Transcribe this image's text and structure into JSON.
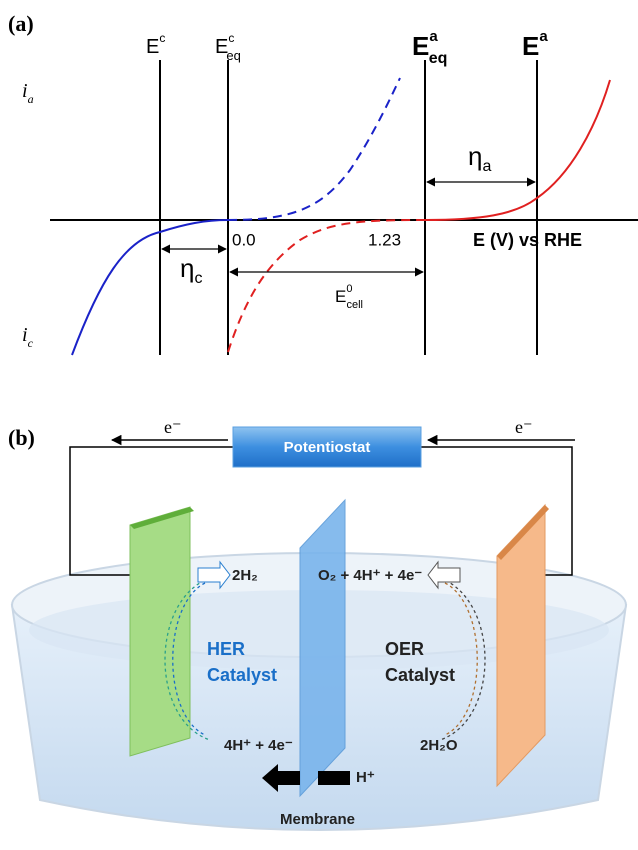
{
  "panel_a": {
    "label": "(a)",
    "potentials": [
      {
        "base": "E",
        "sup": "c"
      },
      {
        "base": "E",
        "sup": "c",
        "sub": "eq"
      },
      {
        "base": "E",
        "sup": "a",
        "sub": "eq"
      },
      {
        "base": "E",
        "sup": "a"
      }
    ],
    "current_labels": [
      {
        "base": "i",
        "sub": "a"
      },
      {
        "base": "i",
        "sub": "c"
      }
    ],
    "overpotentials": [
      {
        "base": "η",
        "sub": "a"
      },
      {
        "base": "η",
        "sub": "c"
      }
    ],
    "axis_ticks": [
      "0.0",
      "1.23"
    ],
    "axis_label": "E (V) vs RHE",
    "cell_potential": {
      "base": "E",
      "sup": "0",
      "sub": "cell"
    }
  },
  "panel_b": {
    "label": "(b)",
    "electron_labels": [
      "e⁻",
      "e⁻"
    ],
    "potentiostat": "Potentiostat",
    "cathode_product": "2H₂",
    "anode_product": "O₂ + 4H⁺ + 4e⁻",
    "her_catalyst": [
      "HER",
      "Catalyst"
    ],
    "oer_catalyst": [
      "OER",
      "Catalyst"
    ],
    "cathode_reactant": "4H⁺ + 4e⁻",
    "anode_reactant": "2H₂O",
    "proton": "H⁺",
    "membrane": "Membrane"
  }
}
